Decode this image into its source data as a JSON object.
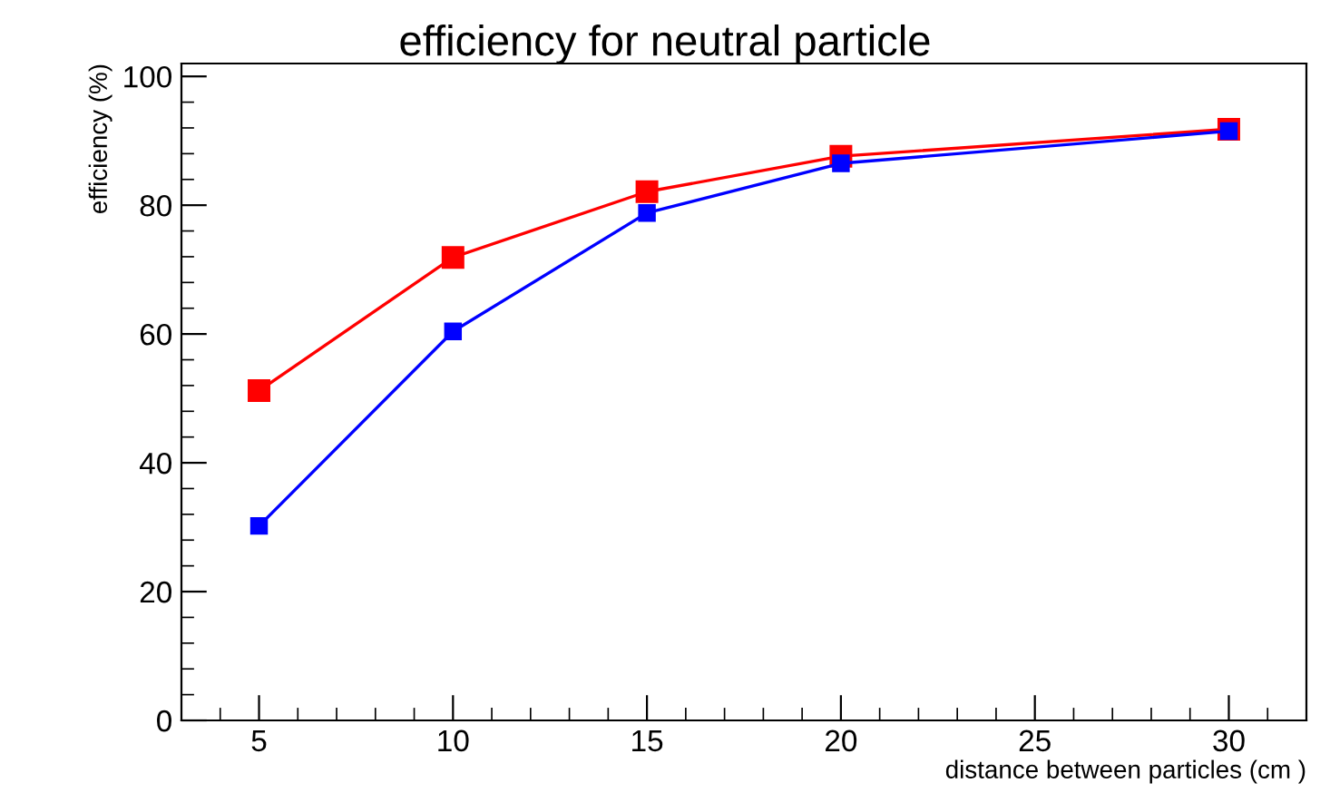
{
  "chart_data": {
    "type": "line",
    "title": "efficiency for neutral particle",
    "xlabel": "distance between particles (cm )",
    "ylabel": "efficiency (%)",
    "x": [
      5,
      10,
      15,
      20,
      30
    ],
    "series": [
      {
        "color": "#ff0000",
        "values": [
          51.2,
          71.9,
          82.1,
          87.6,
          91.8
        ]
      },
      {
        "color": "#0000ff",
        "values": [
          30.2,
          60.4,
          78.8,
          86.5,
          91.5
        ]
      }
    ],
    "xlim": [
      3,
      32
    ],
    "ylim": [
      0,
      102
    ],
    "xticks": [
      5,
      10,
      15,
      20,
      25,
      30
    ],
    "yticks": [
      0,
      20,
      40,
      60,
      80,
      100
    ],
    "marker": "square",
    "line_style": "solid",
    "grid": false
  }
}
